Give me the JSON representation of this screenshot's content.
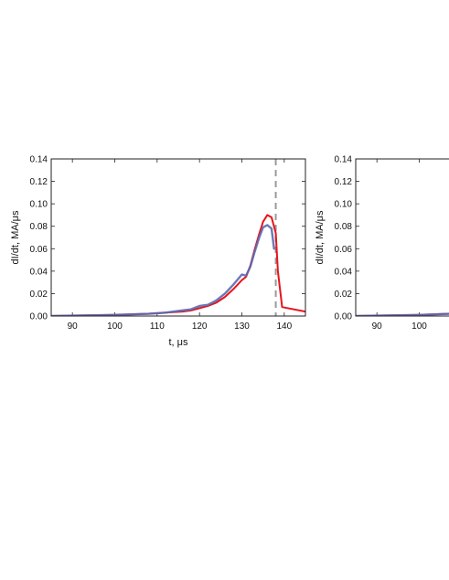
{
  "chart_data": [
    {
      "type": "line",
      "xlabel": "t, μs",
      "ylabel": "dI/dt, MA/μs",
      "xlim": [
        85,
        145
      ],
      "ylim": [
        0,
        0.14
      ],
      "xticks": [
        "90",
        "100",
        "110",
        "120",
        "130",
        "140"
      ],
      "yticks": [
        "0.00",
        "0.02",
        "0.04",
        "0.06",
        "0.08",
        "0.10",
        "0.12",
        "0.14"
      ],
      "vline": {
        "x": 138,
        "style": "dashed",
        "color": "#9a9a9a"
      },
      "series": [
        {
          "color": "#e8141c",
          "style": "solid",
          "x": [
            85,
            100,
            108,
            112,
            116,
            118,
            120,
            122,
            124,
            126,
            128,
            130,
            131,
            132,
            133,
            134,
            135,
            136,
            137,
            138,
            138.5,
            139.5,
            145
          ],
          "y": [
            0.0,
            0.001,
            0.002,
            0.003,
            0.004,
            0.005,
            0.007,
            0.009,
            0.012,
            0.017,
            0.024,
            0.032,
            0.035,
            0.045,
            0.059,
            0.072,
            0.084,
            0.09,
            0.088,
            0.074,
            0.04,
            0.008,
            0.004
          ]
        },
        {
          "color": "#5a6ab2",
          "style": "solid",
          "x": [
            85,
            100,
            108,
            112,
            116,
            118,
            120,
            122,
            124,
            126,
            128,
            130,
            131,
            132,
            133,
            134,
            135,
            136,
            137,
            137.6
          ],
          "y": [
            0.0,
            0.001,
            0.002,
            0.003,
            0.005,
            0.006,
            0.009,
            0.01,
            0.014,
            0.02,
            0.028,
            0.037,
            0.036,
            0.044,
            0.057,
            0.069,
            0.079,
            0.081,
            0.078,
            0.06
          ]
        }
      ]
    },
    {
      "type": "line",
      "xlabel": "",
      "ylabel": "dI/dt, MA/μs",
      "xlim": [
        85,
        145
      ],
      "ylim": [
        0,
        0.14
      ],
      "xticks": [
        "90",
        "100"
      ],
      "yticks": [
        "0.00",
        "0.02",
        "0.04",
        "0.06",
        "0.08",
        "0.10",
        "0.12",
        "0.14"
      ],
      "series": [
        {
          "color": "#e8141c",
          "style": "solid",
          "x": [
            85,
            100,
            107
          ],
          "y": [
            0.0,
            0.001,
            0.002
          ]
        },
        {
          "color": "#5a6ab2",
          "style": "solid",
          "x": [
            85,
            100,
            107
          ],
          "y": [
            0.0,
            0.001,
            0.002
          ]
        }
      ]
    }
  ]
}
